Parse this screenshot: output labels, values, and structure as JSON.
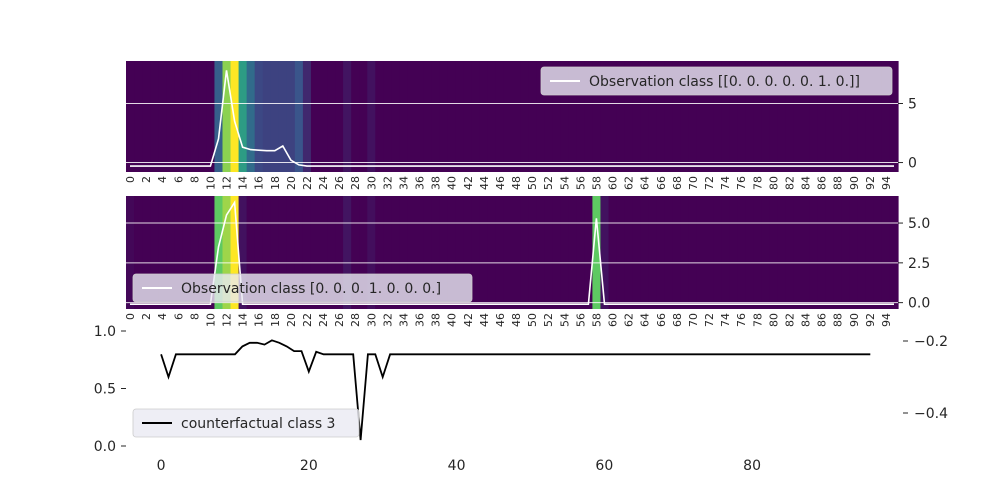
{
  "chart_data": [
    {
      "type": "heatmap",
      "legend": "Observation class [[0. 0. 0. 0. 0. 1. 0.]]",
      "legend_position": "top-right",
      "y_ticks": [
        "0",
        "5"
      ],
      "ylim": [
        -0.8,
        8.6
      ],
      "x_tick_labels": [
        "0",
        "2",
        "4",
        "6",
        "8",
        "10",
        "12",
        "14",
        "16",
        "18",
        "20",
        "22",
        "24",
        "26",
        "28",
        "30",
        "32",
        "34",
        "36",
        "38",
        "40",
        "42",
        "44",
        "46",
        "48",
        "50",
        "52",
        "54",
        "56",
        "58",
        "60",
        "62",
        "64",
        "66",
        "68",
        "70",
        "72",
        "74",
        "76",
        "78",
        "80",
        "82",
        "84",
        "86",
        "88",
        "90",
        "92",
        "94"
      ],
      "n_columns": 96,
      "heat_values": [
        0,
        0,
        0,
        0,
        0,
        0,
        0,
        0,
        0,
        0,
        0,
        0,
        0,
        0,
        0,
        0,
        0,
        0,
        0,
        0,
        0,
        0,
        0,
        0,
        0,
        0,
        0,
        0,
        0,
        0,
        0,
        0,
        0,
        0,
        0,
        0,
        0,
        0,
        0,
        0,
        0,
        0,
        0,
        0,
        0,
        0,
        0,
        0,
        0,
        0,
        0,
        0,
        0,
        0,
        0,
        0,
        0,
        0,
        0,
        0,
        0,
        0,
        0,
        0,
        0,
        0,
        0,
        0,
        0,
        0,
        0,
        0,
        0,
        0,
        0,
        0,
        0,
        0,
        0,
        0,
        0,
        0,
        0,
        0,
        0,
        0,
        0,
        0,
        0,
        0,
        0,
        0,
        0,
        0,
        0,
        0
      ],
      "heat_overrides": [
        [
          11,
          0.3
        ],
        [
          12,
          0.82
        ],
        [
          13,
          1.0
        ],
        [
          14,
          0.55
        ],
        [
          15,
          0.35
        ],
        [
          16,
          0.22
        ],
        [
          17,
          0.2
        ],
        [
          18,
          0.2
        ],
        [
          19,
          0.2
        ],
        [
          20,
          0.2
        ],
        [
          21,
          0.26
        ],
        [
          22,
          0.12
        ],
        [
          27,
          0.06
        ],
        [
          30,
          0.05
        ]
      ],
      "series": [
        {
          "name": "Observation class [[0. 0. 0. 0. 0. 1. 0.]]",
          "color": "#ffffff",
          "x": [
            0,
            1,
            2,
            3,
            4,
            5,
            6,
            7,
            8,
            9,
            10,
            11,
            12,
            13,
            14,
            15,
            16,
            17,
            18,
            19,
            20,
            21,
            22,
            23,
            24,
            25,
            26,
            27,
            28,
            29,
            30,
            31,
            32,
            33,
            34,
            35,
            36,
            37,
            38,
            39,
            40,
            41,
            42,
            43,
            44,
            45,
            46,
            47,
            48,
            49,
            50,
            51,
            52,
            53,
            54,
            55,
            56,
            57,
            58,
            59,
            60,
            61,
            62,
            63,
            64,
            65,
            66,
            67,
            68,
            69,
            70,
            71,
            72,
            73,
            74,
            75,
            76,
            77,
            78,
            79,
            80,
            81,
            82,
            83,
            84,
            85,
            86,
            87,
            88,
            89,
            90,
            91,
            92,
            93,
            94,
            95
          ],
          "values": [
            -0.3,
            -0.3,
            -0.3,
            -0.3,
            -0.3,
            -0.3,
            -0.3,
            -0.3,
            -0.3,
            -0.3,
            -0.3,
            2.0,
            7.8,
            3.5,
            1.3,
            1.1,
            1.05,
            1.0,
            1.0,
            1.4,
            0.2,
            -0.2,
            -0.3,
            -0.3,
            -0.3,
            -0.3,
            -0.3,
            -0.3,
            -0.3,
            -0.3,
            -0.3,
            -0.3,
            -0.3,
            -0.3,
            -0.3,
            -0.3,
            -0.3,
            -0.3,
            -0.3,
            -0.3,
            -0.3,
            -0.3,
            -0.3,
            -0.3,
            -0.3,
            -0.3,
            -0.3,
            -0.3,
            -0.3,
            -0.3,
            -0.3,
            -0.3,
            -0.3,
            -0.3,
            -0.3,
            -0.3,
            -0.3,
            -0.3,
            -0.3,
            -0.3,
            -0.3,
            -0.3,
            -0.3,
            -0.3,
            -0.3,
            -0.3,
            -0.3,
            -0.3,
            -0.3,
            -0.3,
            -0.3,
            -0.3,
            -0.3,
            -0.3,
            -0.3,
            -0.3,
            -0.3,
            -0.3,
            -0.3,
            -0.3,
            -0.3,
            -0.3,
            -0.3,
            -0.3,
            -0.3,
            -0.3,
            -0.3,
            -0.3,
            -0.3,
            -0.3,
            -0.3,
            -0.3,
            -0.3,
            -0.3,
            -0.3,
            -0.3
          ]
        }
      ],
      "grid": true
    },
    {
      "type": "heatmap",
      "legend": "Observation class [0. 0. 0. 1. 0. 0. 0.]",
      "legend_position": "bottom-left",
      "y_ticks": [
        "0.0",
        "2.5",
        "5.0"
      ],
      "ylim": [
        -0.4,
        6.7
      ],
      "x_tick_labels": [
        "0",
        "2",
        "4",
        "6",
        "8",
        "10",
        "12",
        "14",
        "16",
        "18",
        "20",
        "22",
        "24",
        "26",
        "28",
        "30",
        "32",
        "34",
        "36",
        "38",
        "40",
        "42",
        "44",
        "46",
        "48",
        "50",
        "52",
        "54",
        "56",
        "58",
        "60",
        "62",
        "64",
        "66",
        "68",
        "70",
        "72",
        "74",
        "76",
        "78",
        "80",
        "82",
        "84",
        "86",
        "88",
        "90",
        "92",
        "94"
      ],
      "n_columns": 96,
      "heat_overrides": [
        [
          0,
          0.02
        ],
        [
          11,
          0.75
        ],
        [
          12,
          0.85
        ],
        [
          13,
          1.0
        ],
        [
          14,
          0.05
        ],
        [
          27,
          0.06
        ],
        [
          30,
          0.04
        ],
        [
          58,
          0.75
        ],
        [
          59,
          0.05
        ]
      ],
      "series": [
        {
          "name": "Observation class [0. 0. 0. 1. 0. 0. 0.]",
          "color": "#ffffff",
          "x": [
            0,
            1,
            2,
            3,
            4,
            5,
            6,
            7,
            8,
            9,
            10,
            11,
            12,
            13,
            14,
            15,
            16,
            17,
            18,
            19,
            20,
            21,
            22,
            23,
            24,
            25,
            26,
            27,
            28,
            29,
            30,
            31,
            32,
            33,
            34,
            35,
            36,
            37,
            38,
            39,
            40,
            41,
            42,
            43,
            44,
            45,
            46,
            47,
            48,
            49,
            50,
            51,
            52,
            53,
            54,
            55,
            56,
            57,
            58,
            59,
            60,
            61,
            62,
            63,
            64,
            65,
            66,
            67,
            68,
            69,
            70,
            71,
            72,
            73,
            74,
            75,
            76,
            77,
            78,
            79,
            80,
            81,
            82,
            83,
            84,
            85,
            86,
            87,
            88,
            89,
            90,
            91,
            92,
            93,
            94,
            95
          ],
          "values": [
            -0.1,
            -0.1,
            -0.1,
            -0.1,
            -0.1,
            -0.1,
            -0.1,
            -0.1,
            -0.1,
            -0.1,
            -0.1,
            3.5,
            5.5,
            6.3,
            -0.1,
            -0.1,
            -0.1,
            -0.1,
            -0.1,
            -0.1,
            -0.1,
            -0.1,
            -0.1,
            -0.1,
            -0.1,
            -0.1,
            -0.1,
            -0.1,
            -0.1,
            -0.1,
            -0.1,
            -0.1,
            -0.1,
            -0.1,
            -0.1,
            -0.1,
            -0.1,
            -0.1,
            -0.1,
            -0.1,
            -0.1,
            -0.1,
            -0.1,
            -0.1,
            -0.1,
            -0.1,
            -0.1,
            -0.1,
            -0.1,
            -0.1,
            -0.1,
            -0.1,
            -0.1,
            -0.1,
            -0.1,
            -0.1,
            -0.1,
            -0.1,
            5.3,
            -0.1,
            -0.1,
            -0.1,
            -0.1,
            -0.1,
            -0.1,
            -0.1,
            -0.1,
            -0.1,
            -0.1,
            -0.1,
            -0.1,
            -0.1,
            -0.1,
            -0.1,
            -0.1,
            -0.1,
            -0.1,
            -0.1,
            -0.1,
            -0.1,
            -0.1,
            -0.1,
            -0.1,
            -0.1,
            -0.1,
            -0.1,
            -0.1,
            -0.1,
            -0.1,
            -0.1,
            -0.1,
            -0.1,
            -0.1,
            -0.1,
            -0.1,
            -0.1
          ]
        }
      ],
      "grid": true
    },
    {
      "type": "line",
      "legend": "counterfactual class 3",
      "legend_position": "bottom-left",
      "left_y_ticks": [
        "0.0",
        "0.5",
        "1.0"
      ],
      "left_ylim": [
        0,
        1
      ],
      "right_y_ticks": [
        "−0.4",
        "−0.2"
      ],
      "right_ylim": [
        -0.5,
        -0.2
      ],
      "x_ticks": [
        "0",
        "20",
        "40",
        "60",
        "80"
      ],
      "xlim": [
        -4.75,
        99.75
      ],
      "series": [
        {
          "name": "counterfactual class 3",
          "color": "#000000",
          "axis": "right",
          "x": [
            0,
            1,
            2,
            3,
            4,
            5,
            6,
            7,
            8,
            9,
            10,
            11,
            12,
            13,
            14,
            15,
            16,
            17,
            18,
            19,
            20,
            21,
            22,
            23,
            24,
            25,
            26,
            27,
            28,
            29,
            30,
            31,
            32,
            33,
            34,
            35,
            36,
            37,
            38,
            39,
            40,
            41,
            42,
            43,
            44,
            45,
            46,
            47,
            48,
            49,
            50,
            51,
            52,
            53,
            54,
            55,
            56,
            57,
            58,
            59,
            60,
            61,
            62,
            63,
            64,
            65,
            66,
            67,
            68,
            69,
            70,
            71,
            72,
            73,
            74,
            75,
            76,
            77,
            78,
            79,
            80,
            81,
            82,
            83,
            84,
            85,
            86,
            87,
            88,
            89,
            90,
            91,
            92,
            93,
            94,
            95,
            96
          ],
          "values": [
            -0.237,
            -0.3,
            -0.237,
            -0.237,
            -0.237,
            -0.237,
            -0.237,
            -0.237,
            -0.237,
            -0.237,
            -0.237,
            -0.237,
            -0.237,
            -0.237,
            -0.237,
            -0.237,
            -0.237,
            -0.237,
            -0.237,
            -0.237,
            -0.237,
            -0.237,
            -0.237,
            -0.237,
            -0.237,
            -0.237,
            -0.237,
            -0.237,
            -0.237,
            -0.237,
            -0.237,
            -0.237,
            -0.237,
            -0.237,
            -0.237,
            -0.237,
            -0.237,
            -0.237,
            -0.237,
            -0.237,
            -0.237,
            -0.237,
            -0.237,
            -0.237,
            -0.237,
            -0.237,
            -0.237,
            -0.237,
            -0.237,
            -0.237,
            -0.237,
            -0.237,
            -0.237,
            -0.237,
            -0.237,
            -0.237,
            -0.237,
            -0.237,
            -0.237,
            -0.237,
            -0.237,
            -0.237,
            -0.237,
            -0.237,
            -0.237,
            -0.237,
            -0.237,
            -0.237,
            -0.237,
            -0.237,
            -0.237,
            -0.237,
            -0.237,
            -0.237,
            -0.237,
            -0.237,
            -0.237,
            -0.237,
            -0.237,
            -0.237,
            -0.237,
            -0.237,
            -0.237,
            -0.237,
            -0.237,
            -0.237,
            -0.237,
            -0.237,
            -0.237,
            -0.237,
            -0.237,
            -0.237,
            -0.237,
            -0.237,
            -0.237,
            -0.237,
            -0.237
          ],
          "overrides": [
            [
              10,
              -0.237
            ],
            [
              11,
              -0.215
            ],
            [
              12,
              -0.205
            ],
            [
              13,
              -0.205
            ],
            [
              14,
              -0.21
            ],
            [
              15,
              -0.198
            ],
            [
              16,
              -0.205
            ],
            [
              17,
              -0.215
            ],
            [
              18,
              -0.228
            ],
            [
              19,
              -0.228
            ],
            [
              20,
              -0.285
            ],
            [
              21,
              -0.23
            ],
            [
              22,
              -0.237
            ],
            [
              26,
              -0.237
            ],
            [
              27,
              -0.475
            ],
            [
              28,
              -0.237
            ],
            [
              29,
              -0.237
            ],
            [
              30,
              -0.3
            ],
            [
              31,
              -0.237
            ]
          ]
        }
      ],
      "grid": false
    }
  ]
}
